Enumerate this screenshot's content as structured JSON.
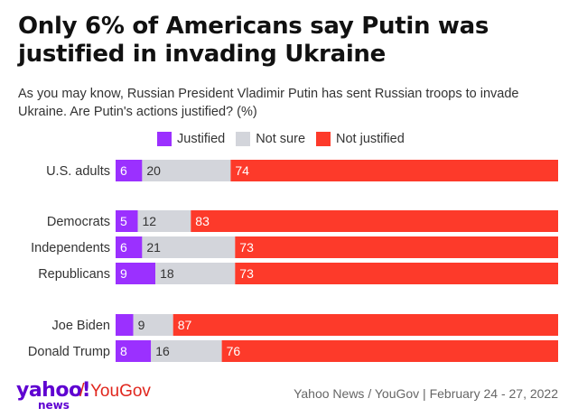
{
  "header": {
    "title": "Only 6% of Americans say Putin was justified in invading Ukraine",
    "subtitle": "As you may know, Russian President Vladimir Putin has sent Russian troops to invade Ukraine. Are Putin's actions justified? (%)"
  },
  "legend": {
    "justified": "Justified",
    "not_sure": "Not sure",
    "not_justified": "Not justified"
  },
  "colors": {
    "justified": "#9b30ff",
    "not_sure": "#d3d5db",
    "not_justified": "#fd3a2a",
    "justified_label": "#ffffff",
    "not_sure_label": "#333333",
    "not_justified_label": "#ffffff"
  },
  "chart_data": {
    "type": "bar",
    "orientation": "horizontal",
    "stacked": true,
    "xlim": [
      0,
      100
    ],
    "categories": [
      "U.S. adults",
      "Democrats",
      "Independents",
      "Republicans",
      "Joe Biden",
      "Donald Trump"
    ],
    "groups": [
      [
        "U.S. adults"
      ],
      [
        "Democrats",
        "Independents",
        "Republicans"
      ],
      [
        "Joe Biden",
        "Donald Trump"
      ]
    ],
    "series": [
      {
        "name": "Justified",
        "values": [
          6,
          5,
          6,
          9,
          4,
          8
        ],
        "labels": [
          "6",
          "5",
          "6",
          "9",
          "",
          "8"
        ]
      },
      {
        "name": "Not sure",
        "values": [
          20,
          12,
          21,
          18,
          9,
          16
        ],
        "labels": [
          "20",
          "12",
          "21",
          "18",
          "9",
          "16"
        ]
      },
      {
        "name": "Not justified",
        "values": [
          74,
          83,
          73,
          73,
          87,
          76
        ],
        "labels": [
          "74",
          "83",
          "73",
          "73",
          "87",
          "76"
        ]
      }
    ],
    "legend_position": "top"
  },
  "footer": {
    "logo_yahoo": "yahoo!",
    "logo_news": "news",
    "logo_slash": "/",
    "logo_yougov": "YouGov",
    "source": "Yahoo News / YouGov | February 24 - 27, 2022"
  }
}
